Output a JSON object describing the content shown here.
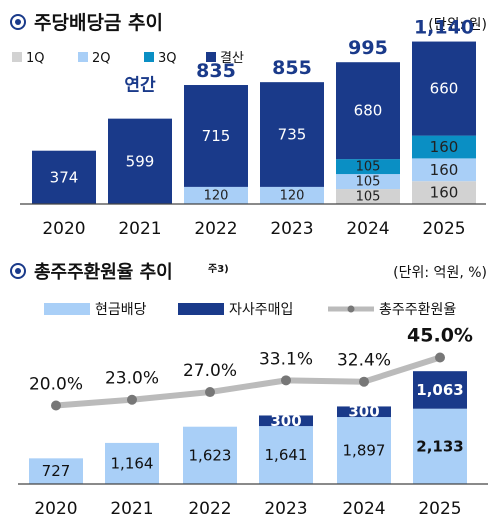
{
  "colors": {
    "q1": "#d2d2d2",
    "q2": "#a9cff7",
    "q3": "#0a8fc4",
    "settle": "#1a3a8a",
    "cash": "#a9cff7",
    "buyback": "#1a3a8a",
    "ratio_line": "#bbbbbb",
    "ratio_dot": "#777777",
    "title_ring": "#1a3a8a"
  },
  "chart_data": [
    {
      "type": "bar",
      "stacked": true,
      "title": "주당배당금 추이",
      "unit_label": "(단위: 원)",
      "legend_placement": "top-left",
      "legend": [
        "1Q",
        "2Q",
        "3Q",
        "결산"
      ],
      "categories": [
        "2020",
        "2021",
        "2022",
        "2023",
        "2024",
        "2025"
      ],
      "annual_label": "연간",
      "series": [
        {
          "name": "1Q",
          "values": [
            0,
            0,
            0,
            0,
            105,
            160
          ]
        },
        {
          "name": "2Q",
          "values": [
            0,
            0,
            120,
            120,
            105,
            160
          ]
        },
        {
          "name": "3Q",
          "values": [
            0,
            0,
            0,
            0,
            105,
            160
          ]
        },
        {
          "name": "결산",
          "values": [
            374,
            599,
            715,
            735,
            680,
            660
          ]
        }
      ],
      "segment_labels": [
        [
          "",
          "",
          "",
          "374"
        ],
        [
          "",
          "",
          "",
          "599"
        ],
        [
          "",
          "120",
          "",
          "715"
        ],
        [
          "",
          "120",
          "",
          "735"
        ],
        [
          "105",
          "105",
          "105",
          "680"
        ],
        [
          "160",
          "160",
          "160",
          "660"
        ]
      ],
      "totals": [
        "",
        "",
        "835",
        "855",
        "995",
        "1,140"
      ],
      "ylim": [
        0,
        1300
      ]
    },
    {
      "type": "bar",
      "stacked": true,
      "secondary_line": true,
      "title": "총주주환원율 추이",
      "title_note": "주3)",
      "unit_label": "(단위: 억원, %)",
      "legend_placement": "top",
      "legend": [
        "현금배당",
        "자사주매입",
        "총주주환원율"
      ],
      "categories": [
        "2020",
        "2021",
        "2022",
        "2023",
        "2024",
        "2025"
      ],
      "series": [
        {
          "name": "현금배당",
          "values": [
            727,
            1164,
            1623,
            1641,
            1897,
            2133
          ]
        },
        {
          "name": "자사주매입",
          "values": [
            0,
            0,
            0,
            300,
            300,
            1063
          ]
        }
      ],
      "bar_labels": {
        "cash": [
          "727",
          "1,164",
          "1,623",
          "1,641",
          "1,897",
          "2,133"
        ],
        "buyback": [
          "",
          "",
          "",
          "300",
          "300",
          "1,063"
        ]
      },
      "line": {
        "name": "총주주환원율",
        "values": [
          20.0,
          23.0,
          27.0,
          33.1,
          32.4,
          45.0
        ],
        "labels": [
          "20.0%",
          "23.0%",
          "27.0%",
          "33.1%",
          "32.4%",
          "45.0%"
        ]
      },
      "ylim": [
        0,
        3400
      ]
    }
  ]
}
